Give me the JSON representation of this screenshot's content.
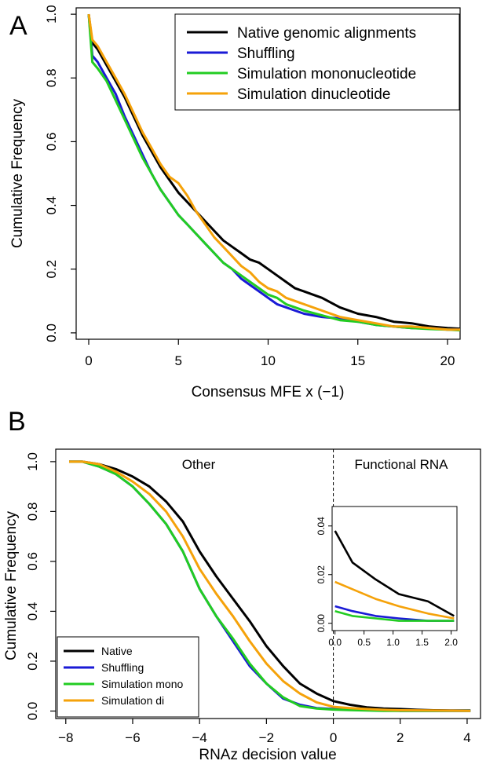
{
  "panel_a_letter": "A",
  "panel_b_letter": "B",
  "colors": {
    "native": "#000000",
    "shuffling": "#1a1ad6",
    "mono": "#22cc22",
    "di": "#f5a20a"
  },
  "chart_data": [
    {
      "type": "line",
      "panel": "A",
      "xlabel": "Consensus MFE x (−1)",
      "ylabel": "Cumulative Frequency",
      "xlim": [
        -0.7,
        20.7
      ],
      "ylim": [
        -0.02,
        1.02
      ],
      "xticks": [
        0,
        5,
        10,
        15,
        20
      ],
      "yticks": [
        0.0,
        0.2,
        0.4,
        0.6,
        0.8,
        1.0
      ],
      "xtick_labels": [
        "0",
        "5",
        "10",
        "15",
        "20"
      ],
      "ytick_labels": [
        "0.0",
        "0.2",
        "0.4",
        "0.6",
        "0.8",
        "1.0"
      ],
      "grid": false,
      "legend_position": "top-right",
      "series": [
        {
          "key": "native",
          "name": "Native genomic alignments",
          "color": "#000000",
          "x": [
            0,
            0.2,
            0.5,
            1,
            1.5,
            2,
            2.5,
            3,
            3.5,
            4,
            4.5,
            5,
            5.5,
            6,
            6.5,
            7,
            7.5,
            8,
            8.5,
            9,
            9.5,
            10,
            10.5,
            11,
            11.5,
            12,
            12.5,
            13,
            14,
            15,
            16,
            17,
            18,
            19,
            20,
            20.7
          ],
          "y": [
            1.0,
            0.91,
            0.89,
            0.84,
            0.79,
            0.74,
            0.68,
            0.62,
            0.57,
            0.52,
            0.48,
            0.44,
            0.41,
            0.38,
            0.35,
            0.32,
            0.29,
            0.27,
            0.25,
            0.23,
            0.22,
            0.2,
            0.18,
            0.16,
            0.14,
            0.13,
            0.12,
            0.11,
            0.08,
            0.06,
            0.05,
            0.035,
            0.03,
            0.02,
            0.015,
            0.013
          ]
        },
        {
          "key": "shuffling",
          "name": "Shuffling",
          "color": "#1a1ad6",
          "x": [
            0,
            0.2,
            0.5,
            1,
            1.5,
            2,
            2.5,
            3,
            3.5,
            4,
            4.5,
            5,
            5.5,
            6,
            6.5,
            7,
            7.5,
            8,
            8.5,
            9,
            9.5,
            10,
            10.5,
            11,
            11.5,
            12,
            13,
            14,
            15,
            16,
            17,
            18,
            19,
            20,
            20.7
          ],
          "y": [
            1.0,
            0.87,
            0.85,
            0.8,
            0.75,
            0.68,
            0.62,
            0.56,
            0.5,
            0.45,
            0.41,
            0.37,
            0.34,
            0.31,
            0.28,
            0.25,
            0.22,
            0.2,
            0.17,
            0.15,
            0.13,
            0.11,
            0.09,
            0.08,
            0.07,
            0.06,
            0.05,
            0.045,
            0.035,
            0.025,
            0.02,
            0.015,
            0.015,
            0.01,
            0.01
          ]
        },
        {
          "key": "mono",
          "name": "Simulation mononucleotide",
          "color": "#22cc22",
          "x": [
            0,
            0.2,
            0.5,
            1,
            1.5,
            2,
            2.5,
            3,
            3.5,
            4,
            4.5,
            5,
            5.5,
            6,
            6.5,
            7,
            7.5,
            8,
            8.5,
            9,
            9.5,
            10,
            10.5,
            11,
            11.5,
            12,
            13,
            14,
            15,
            16,
            17,
            18,
            19,
            20,
            20.7
          ],
          "y": [
            1.0,
            0.85,
            0.83,
            0.79,
            0.73,
            0.67,
            0.61,
            0.55,
            0.5,
            0.45,
            0.41,
            0.37,
            0.34,
            0.31,
            0.28,
            0.25,
            0.22,
            0.2,
            0.18,
            0.16,
            0.14,
            0.12,
            0.11,
            0.09,
            0.08,
            0.07,
            0.055,
            0.04,
            0.035,
            0.025,
            0.02,
            0.015,
            0.012,
            0.01,
            0.008
          ]
        },
        {
          "key": "di",
          "name": "Simulation dinucleotide",
          "color": "#f5a20a",
          "x": [
            0,
            0.2,
            0.5,
            1,
            1.5,
            2,
            2.5,
            3,
            3.5,
            4,
            4.5,
            5,
            5.5,
            6,
            6.5,
            7,
            7.5,
            8,
            8.5,
            9,
            9.5,
            10,
            10.5,
            11,
            11.5,
            12,
            13,
            14,
            15,
            16,
            17,
            18,
            19,
            20,
            20.7
          ],
          "y": [
            1.0,
            0.92,
            0.9,
            0.85,
            0.8,
            0.75,
            0.69,
            0.63,
            0.58,
            0.53,
            0.49,
            0.47,
            0.43,
            0.38,
            0.34,
            0.3,
            0.27,
            0.24,
            0.21,
            0.19,
            0.16,
            0.14,
            0.13,
            0.11,
            0.1,
            0.09,
            0.07,
            0.05,
            0.04,
            0.03,
            0.02,
            0.02,
            0.015,
            0.01,
            0.01
          ]
        }
      ]
    },
    {
      "type": "line",
      "panel": "B",
      "xlabel": "RNAz decision value",
      "ylabel": "Cumulative Frequency",
      "xlim": [
        -8.3,
        4.4
      ],
      "ylim": [
        -0.03,
        1.05
      ],
      "xticks": [
        -8,
        -6,
        -4,
        -2,
        0,
        2,
        4
      ],
      "yticks": [
        0.0,
        0.2,
        0.4,
        0.6,
        0.8,
        1.0
      ],
      "xtick_labels": [
        "−8",
        "−6",
        "−4",
        "−2",
        "0",
        "2",
        "4"
      ],
      "ytick_labels": [
        "0.0",
        "0.2",
        "0.4",
        "0.6",
        "0.8",
        "1.0"
      ],
      "grid": false,
      "legend_position": "bottom-left",
      "divider_x": 0,
      "regions": [
        "Other",
        "Functional RNA"
      ],
      "series": [
        {
          "key": "native",
          "name": "Native",
          "color": "#000000",
          "x": [
            -7.9,
            -7.5,
            -7.0,
            -6.5,
            -6.0,
            -5.5,
            -5.0,
            -4.5,
            -4.0,
            -3.5,
            -3.0,
            -2.5,
            -2.0,
            -1.5,
            -1.0,
            -0.5,
            0,
            0.5,
            1.0,
            1.5,
            2.0,
            2.5,
            3.0,
            3.5,
            4.1
          ],
          "y": [
            1.0,
            1.0,
            0.99,
            0.97,
            0.94,
            0.9,
            0.84,
            0.76,
            0.64,
            0.54,
            0.45,
            0.36,
            0.26,
            0.18,
            0.11,
            0.07,
            0.04,
            0.025,
            0.015,
            0.01,
            0.008,
            0.005,
            0.003,
            0.002,
            0.002
          ]
        },
        {
          "key": "shuffling",
          "name": "Shuffling",
          "color": "#1a1ad6",
          "x": [
            -7.9,
            -7.5,
            -7.0,
            -6.5,
            -6.0,
            -5.5,
            -5.0,
            -4.5,
            -4.0,
            -3.5,
            -3.0,
            -2.5,
            -2.0,
            -1.5,
            -1.0,
            -0.5,
            0,
            0.5,
            1.0,
            1.5,
            2.0,
            3.0,
            4.1
          ],
          "y": [
            1.0,
            1.0,
            0.98,
            0.95,
            0.9,
            0.83,
            0.75,
            0.64,
            0.49,
            0.38,
            0.28,
            0.18,
            0.11,
            0.05,
            0.025,
            0.012,
            0.008,
            0.006,
            0.004,
            0.002,
            0.001,
            0.001,
            0.001
          ]
        },
        {
          "key": "mono",
          "name": "Simulation mono",
          "color": "#22cc22",
          "x": [
            -7.9,
            -7.5,
            -7.0,
            -6.5,
            -6.0,
            -5.5,
            -5.0,
            -4.5,
            -4.0,
            -3.5,
            -3.0,
            -2.5,
            -2.0,
            -1.5,
            -1.0,
            -0.5,
            0,
            0.5,
            1.0,
            1.5,
            2.0,
            3.0,
            4.1
          ],
          "y": [
            1.0,
            1.0,
            0.98,
            0.95,
            0.9,
            0.83,
            0.75,
            0.64,
            0.49,
            0.38,
            0.29,
            0.19,
            0.11,
            0.055,
            0.02,
            0.01,
            0.006,
            0.004,
            0.002,
            0.001,
            0.001,
            0.001,
            0.001
          ]
        },
        {
          "key": "di",
          "name": "Simulation di",
          "color": "#f5a20a",
          "x": [
            -7.9,
            -7.5,
            -7.0,
            -6.5,
            -6.0,
            -5.5,
            -5.0,
            -4.5,
            -4.0,
            -3.5,
            -3.0,
            -2.5,
            -2.0,
            -1.5,
            -1.0,
            -0.5,
            0,
            0.5,
            1.0,
            1.5,
            2.0,
            3.0,
            4.1
          ],
          "y": [
            1.0,
            1.0,
            0.99,
            0.96,
            0.92,
            0.87,
            0.8,
            0.7,
            0.57,
            0.47,
            0.38,
            0.28,
            0.19,
            0.12,
            0.07,
            0.035,
            0.017,
            0.012,
            0.008,
            0.005,
            0.003,
            0.002,
            0.001
          ]
        }
      ],
      "inset": {
        "xlim": [
          -0.05,
          2.1
        ],
        "ylim": [
          -0.003,
          0.048
        ],
        "xticks": [
          0.0,
          0.5,
          1.0,
          1.5,
          2.0
        ],
        "yticks": [
          0.0,
          0.02,
          0.04
        ],
        "xtick_labels": [
          "0.0",
          "0.5",
          "1.0",
          "1.5",
          "2.0"
        ],
        "ytick_labels": [
          "0.00",
          "0.02",
          "0.04"
        ],
        "series": [
          {
            "key": "native",
            "x": [
              0,
              0.3,
              0.7,
              1.1,
              1.6,
              2.05
            ],
            "y": [
              0.038,
              0.025,
              0.018,
              0.012,
              0.009,
              0.003
            ]
          },
          {
            "key": "di",
            "x": [
              0,
              0.3,
              0.7,
              1.1,
              1.6,
              2.05
            ],
            "y": [
              0.017,
              0.014,
              0.01,
              0.007,
              0.004,
              0.002
            ]
          },
          {
            "key": "shuffling",
            "x": [
              0,
              0.3,
              0.7,
              1.1,
              1.6,
              2.05
            ],
            "y": [
              0.007,
              0.005,
              0.003,
              0.002,
              0.001,
              0.001
            ]
          },
          {
            "key": "mono",
            "x": [
              0,
              0.3,
              0.7,
              1.1,
              1.6,
              2.05
            ],
            "y": [
              0.005,
              0.003,
              0.002,
              0.001,
              0.001,
              0.001
            ]
          }
        ]
      }
    }
  ]
}
